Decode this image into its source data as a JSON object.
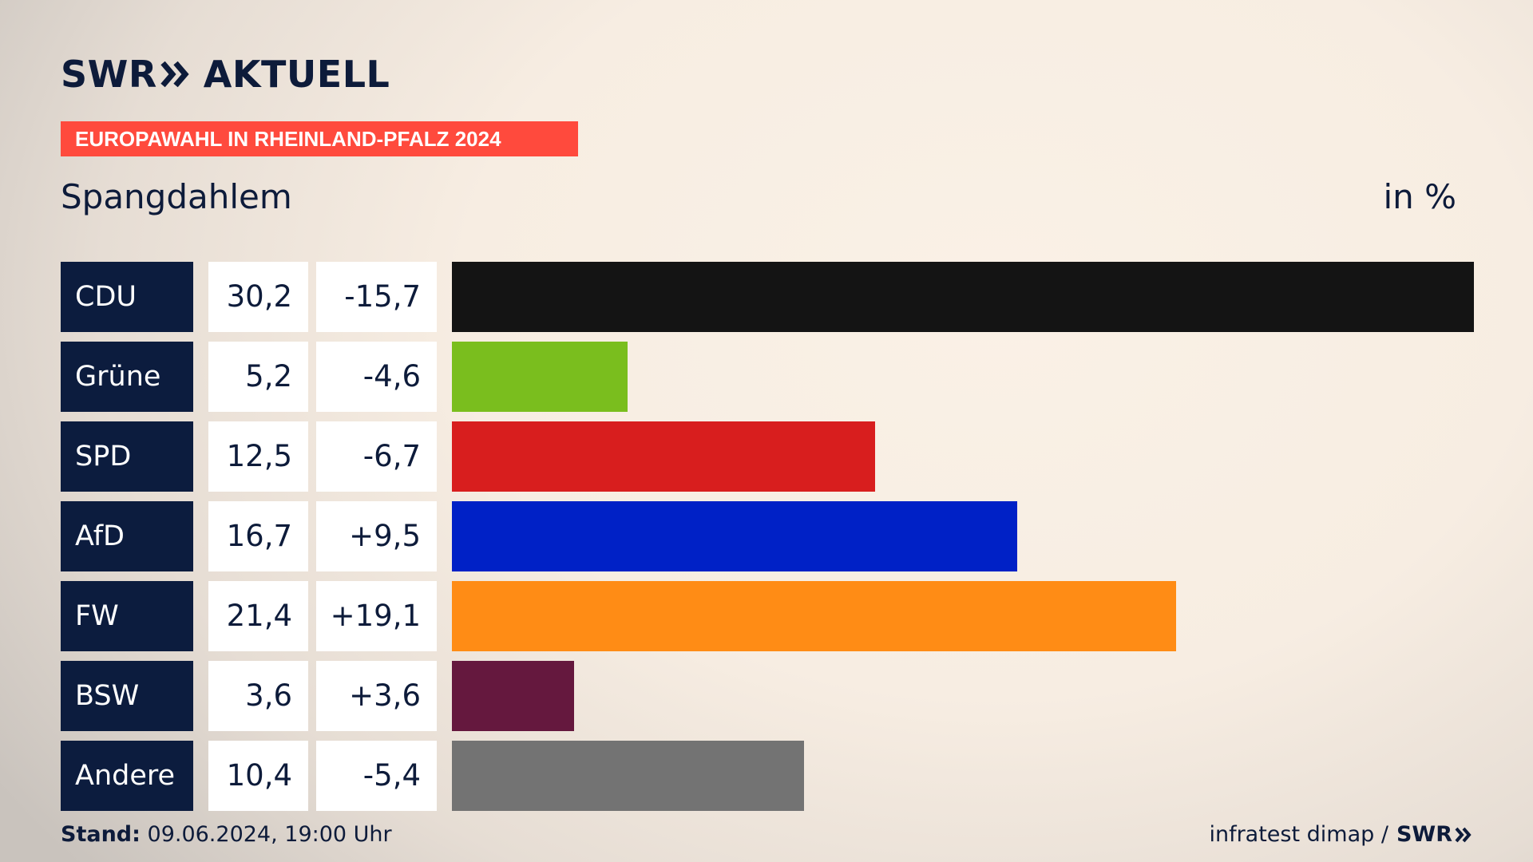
{
  "brand": {
    "logo_left": "SWR",
    "logo_right": "AKTUELL",
    "chevron_icon": "double-chevron-right-icon",
    "color": "#0d1b3a"
  },
  "banner": {
    "text": "EUROPAWAHL IN RHEINLAND-PFALZ 2024",
    "color": "#ff4a3d"
  },
  "location": "Spangdahlem",
  "unit": "in %",
  "footer": {
    "stand_label": "Stand:",
    "stand_value": "09.06.2024, 19:00 Uhr",
    "source": "infratest dimap /",
    "source_logo": "SWR"
  },
  "chart_data": {
    "type": "bar",
    "orientation": "horizontal",
    "categories": [
      "CDU",
      "Grüne",
      "SPD",
      "AfD",
      "FW",
      "BSW",
      "Andere"
    ],
    "values": [
      30.2,
      5.2,
      12.5,
      16.7,
      21.4,
      3.6,
      10.4
    ],
    "value_labels": [
      "30,2",
      "5,2",
      "12,5",
      "16,7",
      "21,4",
      "3,6",
      "10,4"
    ],
    "diff_labels": [
      "-15,7",
      "-4,6",
      "-6,7",
      "+9,5",
      "+19,1",
      "+3,6",
      "-5,4"
    ],
    "diffs": [
      -15.7,
      -4.6,
      -6.7,
      9.5,
      19.1,
      3.6,
      -5.4
    ],
    "colors": [
      "#141414",
      "#7abe1e",
      "#d81e1e",
      "#0021c6",
      "#ff8c15",
      "#65183e",
      "#737373"
    ],
    "xlim": [
      0,
      30.2
    ],
    "grid": false,
    "legend": "none"
  }
}
